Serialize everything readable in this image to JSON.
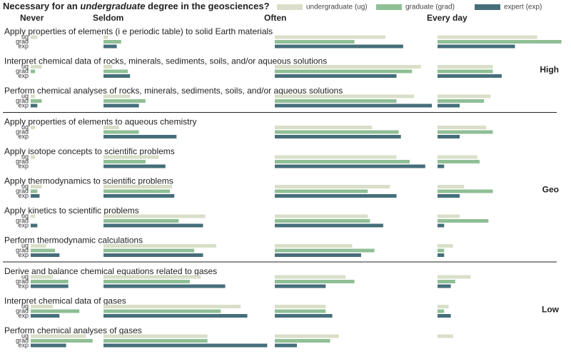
{
  "chart_data": {
    "type": "bar",
    "title": [
      "Necessary for an ",
      "undergraduate",
      " degree in the geosciences?"
    ],
    "columns": [
      "Never",
      "Seldom",
      "Often",
      "Every day"
    ],
    "series": [
      {
        "name": "undergraduate (ug)",
        "short": "ug",
        "color": "#d9dfc8"
      },
      {
        "name": "graduate (grad)",
        "short": "grad",
        "color": "#8fbf95"
      },
      {
        "name": "expert (exp)",
        "short": "exp",
        "color": "#456e7a"
      }
    ],
    "groups": [
      {
        "label": "High",
        "items": [
          {
            "label": "Apply properties of elements (i e  periodic table) to solid Earth materials",
            "values": [
              [
                3,
                2,
                50,
                45
              ],
              [
                0,
                8,
                36,
                56
              ],
              [
                0,
                6,
                58,
                35
              ]
            ]
          },
          {
            "label": "Interpret chemical data of rocks, minerals, sediments, soils, and/or aqueous solutions",
            "values": [
              [
                5,
                4,
                66,
                25
              ],
              [
                2,
                11,
                62,
                25
              ],
              [
                0,
                12,
                55,
                29
              ]
            ]
          },
          {
            "label": "Perform chemical analyses of rocks, minerals, sediments, soils, and/or aqueous solutions",
            "values": [
              [
                2,
                12,
                63,
                24
              ],
              [
                5,
                19,
                55,
                21
              ],
              [
                3,
                16,
                71,
                10
              ]
            ]
          }
        ]
      },
      {
        "label": "Geo",
        "items": [
          {
            "label": "Apply properties of elements to aqueous chemistry",
            "values": [
              [
                2,
                7,
                44,
                22
              ],
              [
                0,
                16,
                56,
                25
              ],
              [
                0,
                33,
                57,
                10
              ]
            ]
          },
          {
            "label": "Apply isotope concepts to scientific problems",
            "values": [
              [
                2,
                25,
                55,
                18
              ],
              [
                0,
                19,
                61,
                19
              ],
              [
                0,
                28,
                68,
                3
              ]
            ]
          },
          {
            "label": "Apply thermodynamics to scientific problems",
            "values": [
              [
                5,
                31,
                52,
                12
              ],
              [
                3,
                30,
                42,
                25
              ],
              [
                4,
                32,
                55,
                10
              ]
            ]
          },
          {
            "label": "Apply kinetics to scientific problems",
            "values": [
              [
                2,
                46,
                42,
                10
              ],
              [
                0,
                34,
                43,
                23
              ],
              [
                3,
                45,
                49,
                3
              ]
            ]
          },
          {
            "label": "Perform thermodynamic calculations",
            "values": [
              [
                7,
                51,
                35,
                7
              ],
              [
                11,
                41,
                45,
                3
              ],
              [
                13,
                45,
                39,
                3
              ]
            ]
          }
        ]
      },
      {
        "label": "Low",
        "items": [
          {
            "label": "Derive and balance chemical equations related to gases",
            "values": [
              [
                10,
                44,
                32,
                15
              ],
              [
                17,
                39,
                36,
                8
              ],
              [
                17,
                55,
                23,
                6
              ]
            ]
          },
          {
            "label": "Interpret chemical data of gases",
            "values": [
              [
                10,
                62,
                23,
                5
              ],
              [
                22,
                53,
                23,
                3
              ],
              [
                13,
                65,
                26,
                6
              ]
            ]
          },
          {
            "label": "Perform chemical analyses of gases",
            "values": [
              [
                25,
                47,
                29,
                7
              ],
              [
                28,
                47,
                25,
                0
              ],
              [
                16,
                74,
                10,
                0
              ]
            ]
          }
        ]
      }
    ]
  }
}
